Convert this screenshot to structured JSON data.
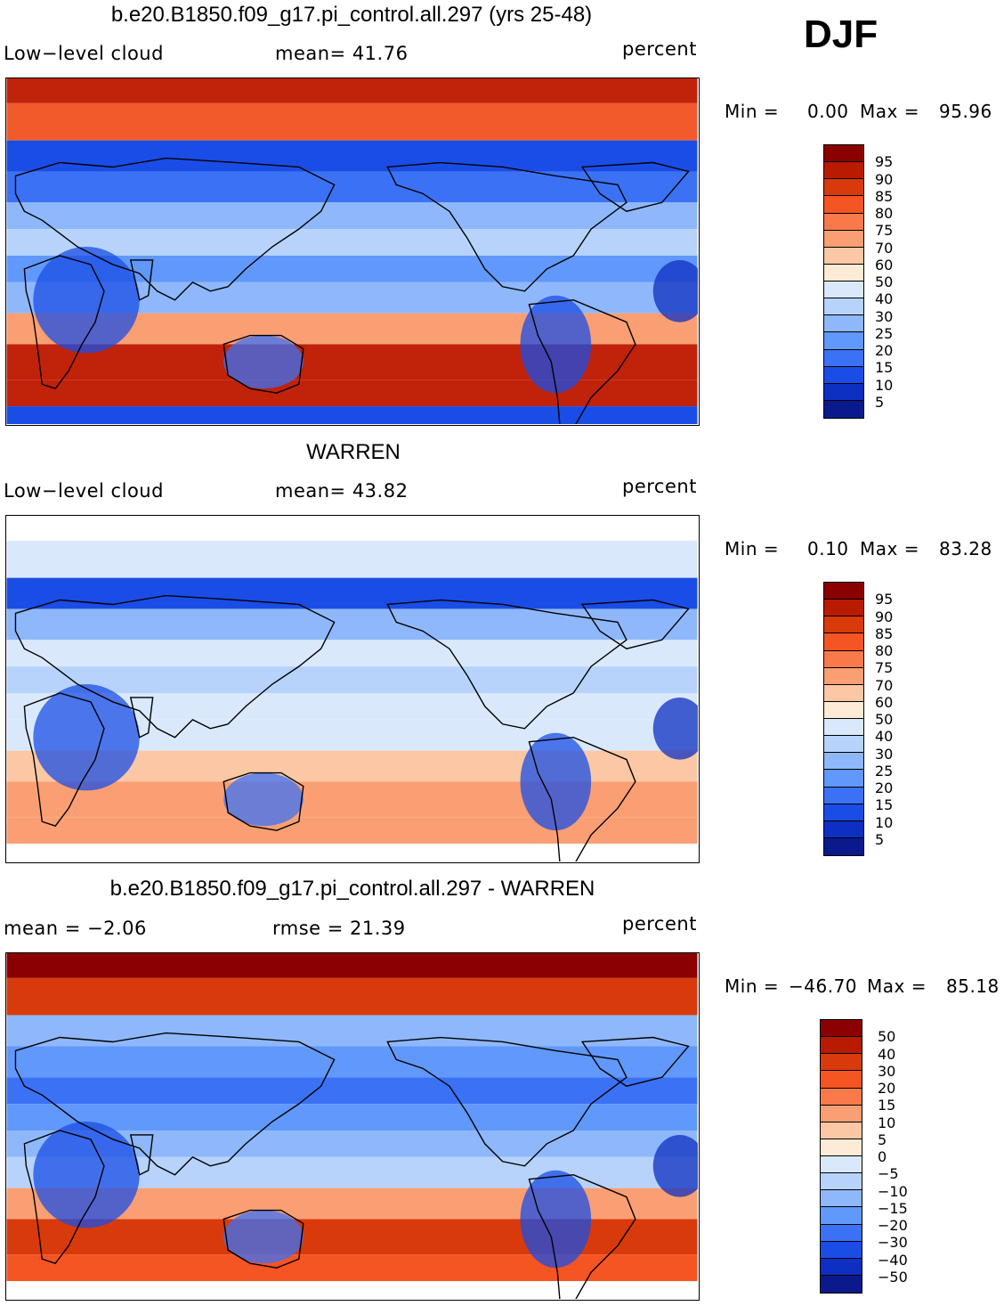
{
  "header": {
    "season": "DJF"
  },
  "chart_data": [
    {
      "type": "heatmap",
      "title": "b.e20.B1850.f09_g17.pi_control.all.297 (yrs 25-48)",
      "variable": "Low−level cloud",
      "stat_left": "mean=   41.76",
      "units": "percent",
      "min_label": "Min =",
      "min_value": "0.00",
      "max_label": "Max =",
      "max_value": "95.96",
      "levels": [
        "95",
        "90",
        "85",
        "80",
        "75",
        "70",
        "60",
        "50",
        "40",
        "30",
        "25",
        "20",
        "15",
        "10",
        "5"
      ],
      "colors": [
        "#8b0000",
        "#b81b00",
        "#d83a0c",
        "#f55423",
        "#f87a4a",
        "#f99f73",
        "#fbc7a4",
        "#fdebd5",
        "#d9e9fb",
        "#b7d3fb",
        "#8eb8fb",
        "#6198fb",
        "#3b72f5",
        "#1a4de6",
        "#0d2fc2",
        "#0a1a8c"
      ],
      "zone_colors": [
        "#c0220a",
        "#f25a2b",
        "#1a4de6",
        "#3b72f5",
        "#8eb8fb",
        "#b7d3fb",
        "#6198fb",
        "#8eb8fb",
        "#f99f73",
        "#c0220a",
        "#c0220a",
        "#1a4de6"
      ]
    },
    {
      "type": "heatmap",
      "title": "WARREN",
      "variable": "Low−level cloud",
      "stat_left": "mean=   43.82",
      "units": "percent",
      "min_label": "Min =",
      "min_value": "0.10",
      "max_label": "Max =",
      "max_value": "83.28",
      "levels": [
        "95",
        "90",
        "85",
        "80",
        "75",
        "70",
        "60",
        "50",
        "40",
        "30",
        "25",
        "20",
        "15",
        "10",
        "5"
      ],
      "colors": [
        "#8b0000",
        "#b81b00",
        "#d83a0c",
        "#f55423",
        "#f87a4a",
        "#f99f73",
        "#fbc7a4",
        "#fdebd5",
        "#d9e9fb",
        "#b7d3fb",
        "#8eb8fb",
        "#6198fb",
        "#3b72f5",
        "#1a4de6",
        "#0d2fc2",
        "#0a1a8c"
      ],
      "zone_colors": [
        "#ffffff",
        "#d9e9fb",
        "#1a4de6",
        "#8eb8fb",
        "#d9e9fb",
        "#b7d3fb",
        "#d9e9fb",
        "#d9e9fb",
        "#fbc7a4",
        "#f99f73",
        "#f99f73",
        "#ffffff"
      ]
    },
    {
      "type": "heatmap",
      "title": "b.e20.B1850.f09_g17.pi_control.all.297 - WARREN",
      "stat_left": "mean =   −2.06",
      "stat_right": "rmse =   21.39",
      "units": "percent",
      "min_label": "Min =",
      "min_value": "−46.70",
      "max_label": "Max =",
      "max_value": "85.18",
      "levels": [
        "50",
        "40",
        "30",
        "20",
        "15",
        "10",
        "5",
        "0",
        "−5",
        "−10",
        "−15",
        "−20",
        "−30",
        "−40",
        "−50"
      ],
      "colors": [
        "#8b0000",
        "#b81b00",
        "#d83a0c",
        "#f55423",
        "#f87a4a",
        "#f99f73",
        "#fbc7a4",
        "#fdebd5",
        "#d9e9fb",
        "#b7d3fb",
        "#8eb8fb",
        "#6198fb",
        "#3b72f5",
        "#1a4de6",
        "#0d2fc2",
        "#0a1a8c"
      ],
      "zone_colors": [
        "#8b0000",
        "#d83a0c",
        "#8eb8fb",
        "#6198fb",
        "#3b72f5",
        "#6198fb",
        "#8eb8fb",
        "#b7d3fb",
        "#f99f73",
        "#d83a0c",
        "#f55423",
        "#ffffff"
      ]
    }
  ]
}
